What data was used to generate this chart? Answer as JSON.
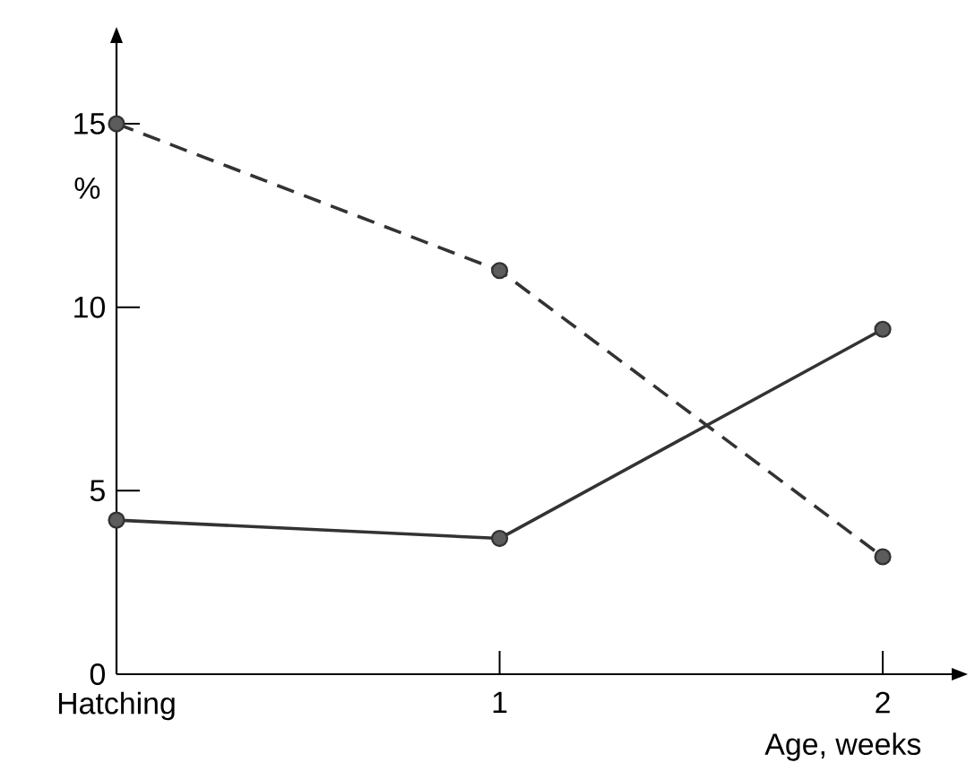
{
  "chart_data": {
    "type": "line",
    "xlabel": "Age, weeks",
    "ylabel": "%",
    "x": [
      0,
      1,
      2
    ],
    "xlim": [
      0,
      2.18
    ],
    "ylim": [
      0,
      17.2
    ],
    "xticks": [
      {
        "value": 0,
        "label": "Hatching"
      },
      1,
      2
    ],
    "yticks": [
      0,
      5,
      10,
      15
    ],
    "marker": "circle",
    "series": [
      {
        "color": "#333333",
        "line_style": "dashed",
        "values": [
          15,
          11,
          3.2
        ]
      },
      {
        "color": "#333333",
        "line_style": "solid",
        "values": [
          4.2,
          3.7,
          9.4
        ]
      }
    ]
  }
}
